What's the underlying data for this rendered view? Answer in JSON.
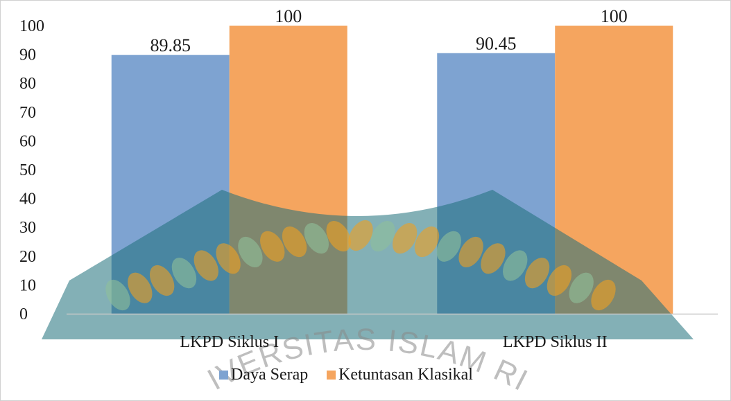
{
  "chart_data": {
    "type": "bar",
    "categories": [
      "LKPD Siklus I",
      "LKPD Siklus II"
    ],
    "series": [
      {
        "name": "Daya Serap",
        "values": [
          89.85,
          90.45
        ],
        "labels": [
          "89.85",
          "90.45"
        ],
        "color": "#7ea3d1"
      },
      {
        "name": "Ketuntasan Klasikal",
        "values": [
          100,
          100
        ],
        "labels": [
          "100",
          "100"
        ],
        "color": "#f5a55f"
      }
    ],
    "ylim": [
      0,
      100
    ],
    "yticks": [
      0,
      10,
      20,
      30,
      40,
      50,
      60,
      70,
      80,
      90,
      100
    ],
    "grid": false,
    "legend_position": "bottom",
    "title": "",
    "xlabel": "",
    "ylabel": ""
  },
  "watermark": {
    "text": "UNIVERSITAS ISLAM RIAU",
    "colors": {
      "ring": "#1e6f7a",
      "beads": "#f0a020",
      "light": "#8fbf9a"
    }
  }
}
